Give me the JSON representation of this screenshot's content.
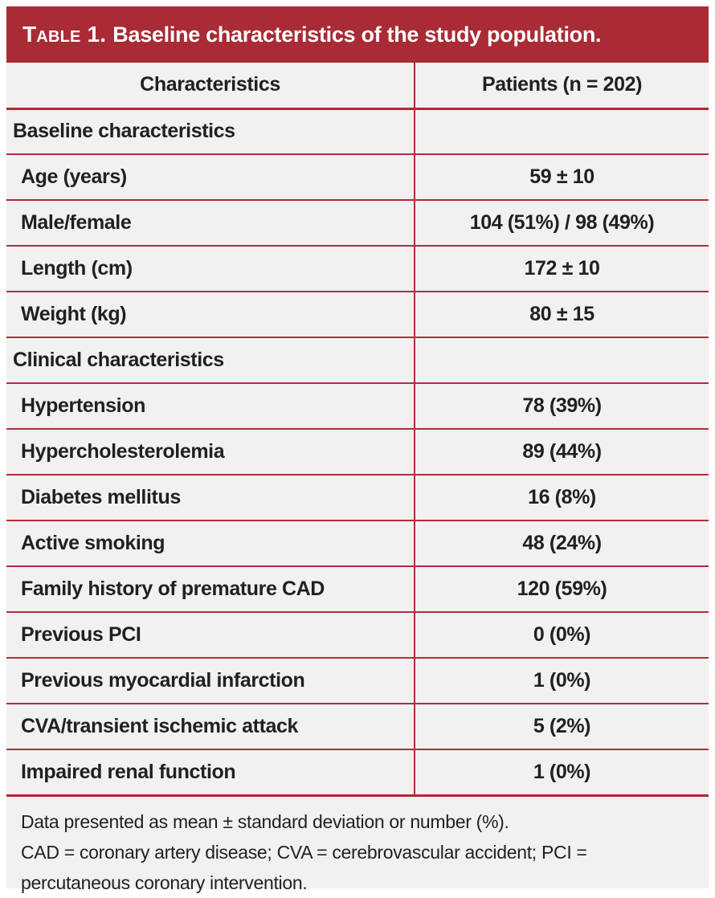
{
  "title": {
    "label": "Table 1.",
    "text": "Baseline characteristics of the study population."
  },
  "table": {
    "columns": [
      "Characteristics",
      "Patients (n = 202)"
    ],
    "rows": [
      {
        "label": "Baseline characteristics",
        "value": "",
        "type": "section"
      },
      {
        "label": "Age (years)",
        "value": "59 ± 10",
        "type": "data"
      },
      {
        "label": "Male/female",
        "value": "104 (51%) / 98 (49%)",
        "type": "data"
      },
      {
        "label": "Length (cm)",
        "value": "172 ± 10",
        "type": "data"
      },
      {
        "label": "Weight (kg)",
        "value": "80 ± 15",
        "type": "data"
      },
      {
        "label": "Clinical characteristics",
        "value": "",
        "type": "section"
      },
      {
        "label": "Hypertension",
        "value": "78 (39%)",
        "type": "data"
      },
      {
        "label": "Hypercholesterolemia",
        "value": "89 (44%)",
        "type": "data"
      },
      {
        "label": "Diabetes mellitus",
        "value": "16 (8%)",
        "type": "data"
      },
      {
        "label": "Active smoking",
        "value": "48 (24%)",
        "type": "data"
      },
      {
        "label": "Family history of premature CAD",
        "value": "120 (59%)",
        "type": "data"
      },
      {
        "label": "Previous PCI",
        "value": "0 (0%)",
        "type": "data"
      },
      {
        "label": "Previous myocardial infarction",
        "value": "1 (0%)",
        "type": "data"
      },
      {
        "label": "CVA/transient ischemic attack",
        "value": "5 (2%)",
        "type": "data"
      },
      {
        "label": "Impaired renal function",
        "value": "1 (0%)",
        "type": "data"
      }
    ]
  },
  "footnotes": [
    "Data presented as mean ± standard deviation or number (%).",
    "CAD = coronary artery disease; CVA = cerebrovascular accident; PCI = percutaneous coronary intervention."
  ],
  "colors": {
    "accent_red": "#A92B35",
    "rule_red": "#B22C3C",
    "header_gray": "#D5D3D4",
    "row_bg": "#F2F0F0",
    "text_dark": "#231F20"
  }
}
